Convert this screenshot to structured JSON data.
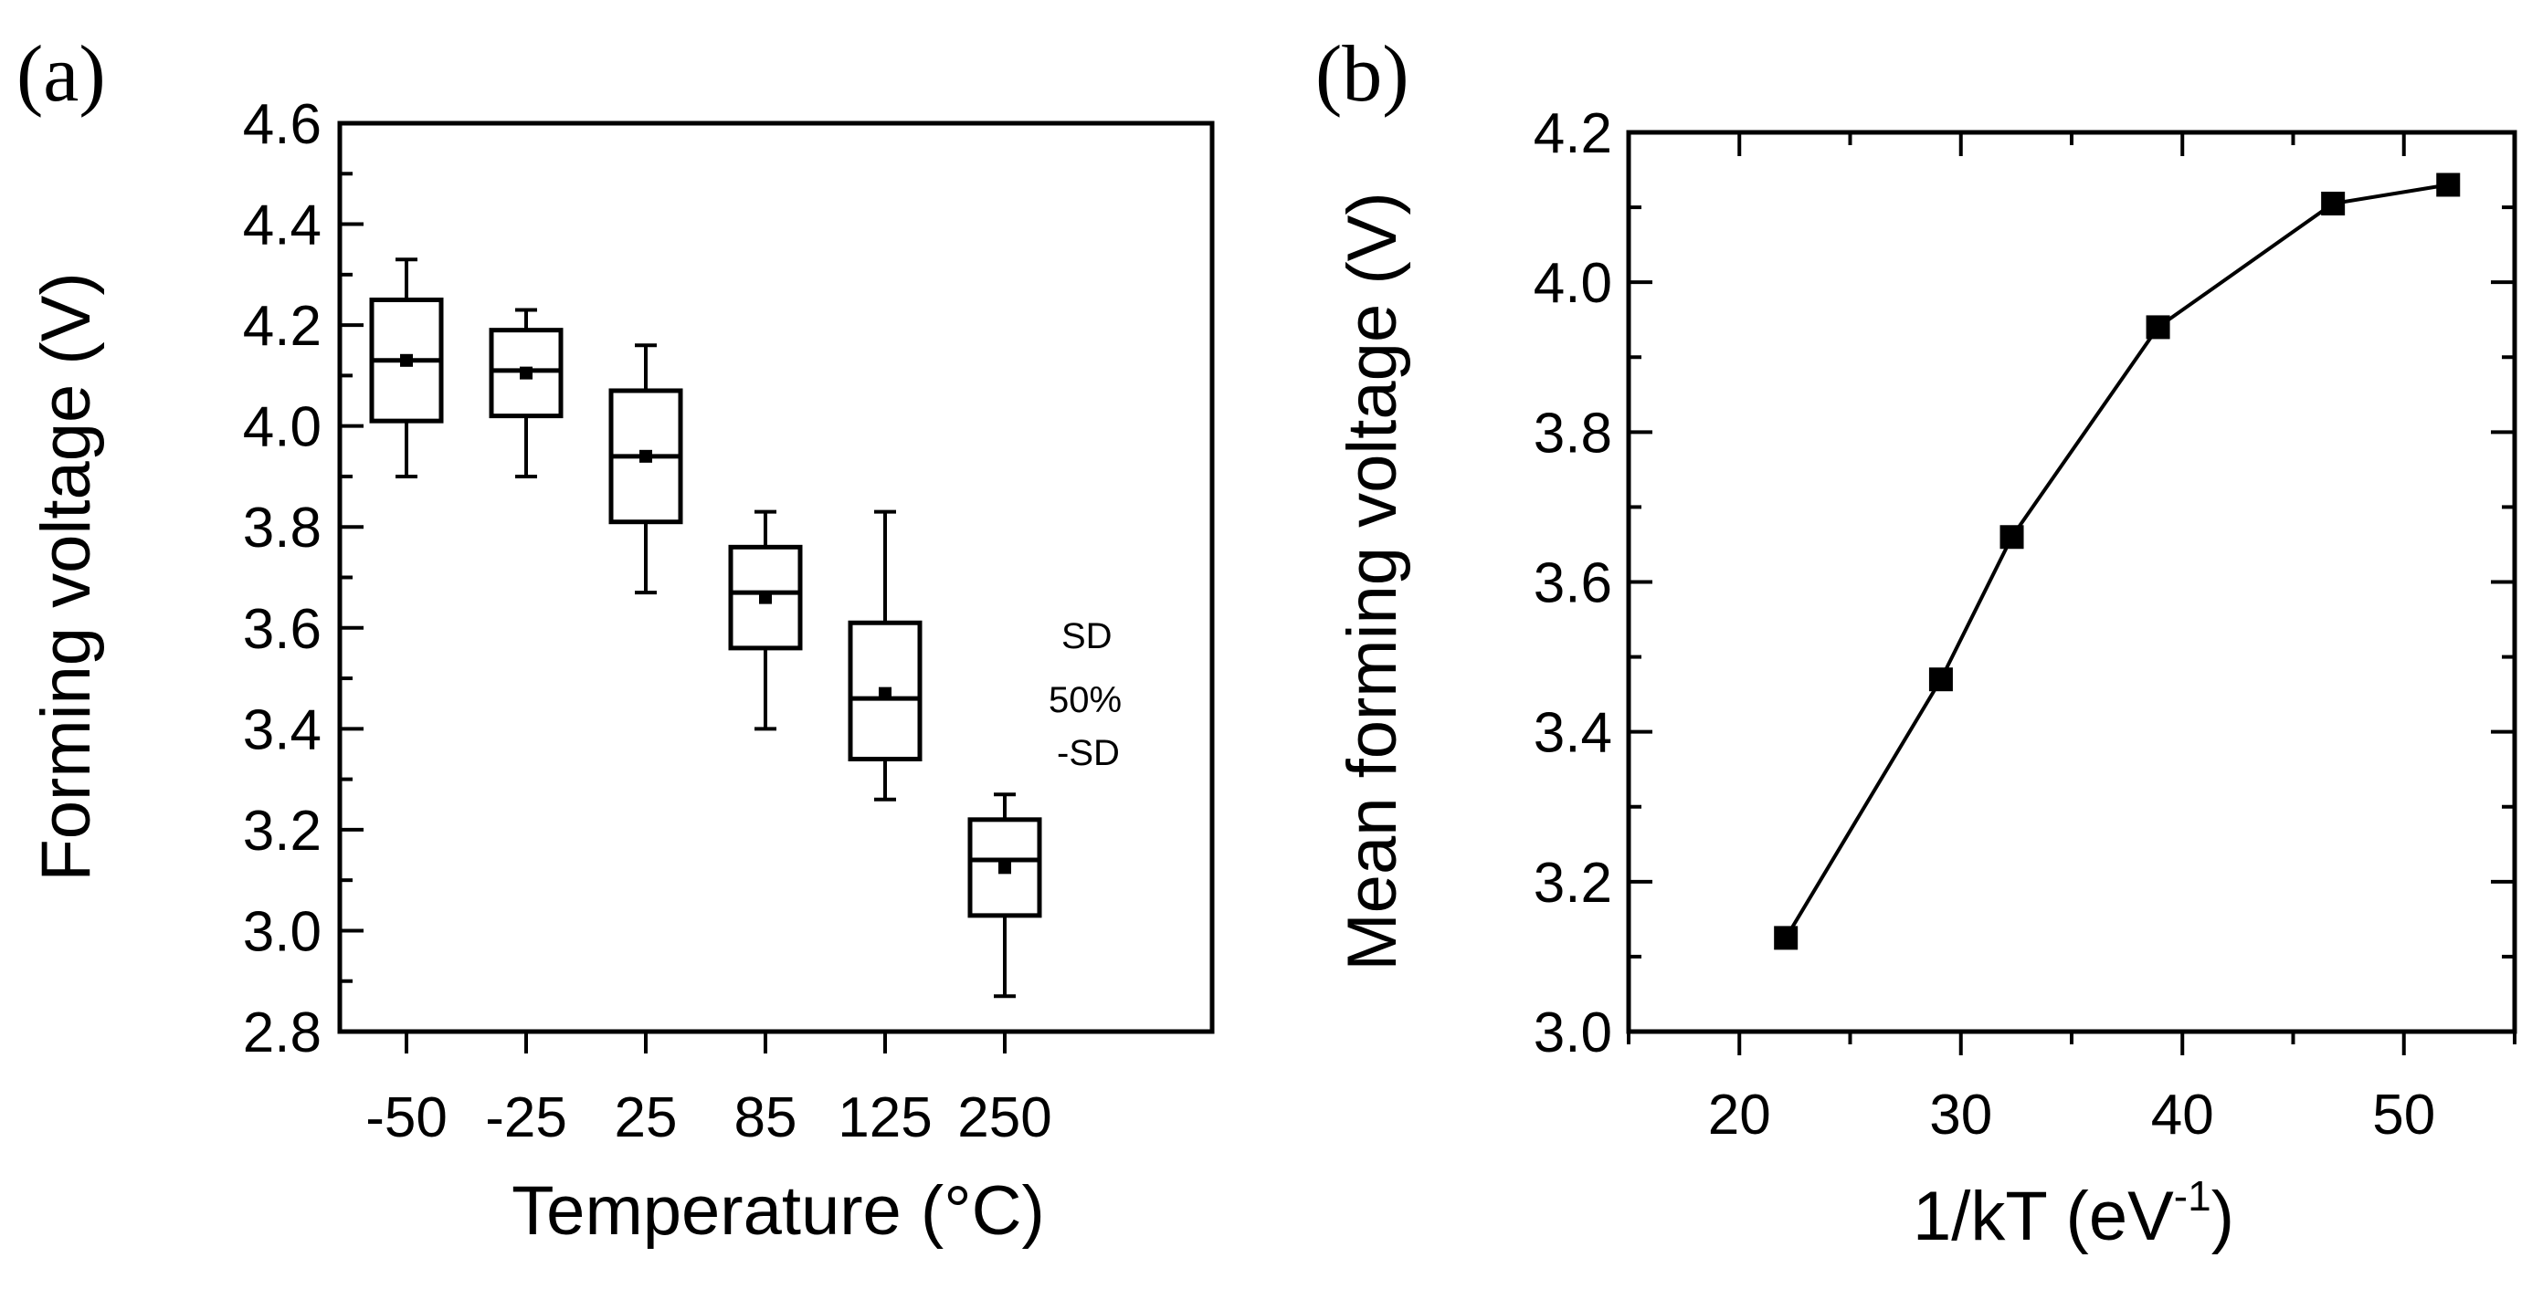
{
  "chart_data": [
    {
      "type": "box",
      "panel_label": "(a)",
      "xlabel": "Temperature (°C)",
      "ylabel": "Forming voltage (V)",
      "categories": [
        "-50",
        "-25",
        "25",
        "85",
        "125",
        "250"
      ],
      "ylim": [
        2.8,
        4.6
      ],
      "yticks": [
        "2.8",
        "3.0",
        "3.2",
        "3.4",
        "3.6",
        "3.8",
        "4.0",
        "4.2",
        "4.4",
        "4.6"
      ],
      "boxes": [
        {
          "category": "-50",
          "whisker_low": 3.9,
          "q1": 4.01,
          "median": 4.13,
          "q3": 4.25,
          "whisker_high": 4.33,
          "mean": 4.13
        },
        {
          "category": "-25",
          "whisker_low": 3.9,
          "q1": 4.02,
          "median": 4.11,
          "q3": 4.19,
          "whisker_high": 4.23,
          "mean": 4.105
        },
        {
          "category": "25",
          "whisker_low": 3.67,
          "q1": 3.81,
          "median": 3.94,
          "q3": 4.07,
          "whisker_high": 4.16,
          "mean": 3.94
        },
        {
          "category": "85",
          "whisker_low": 3.4,
          "q1": 3.56,
          "median": 3.67,
          "q3": 3.76,
          "whisker_high": 3.83,
          "mean": 3.66
        },
        {
          "category": "125",
          "whisker_low": 3.26,
          "q1": 3.34,
          "median": 3.46,
          "q3": 3.61,
          "whisker_high": 3.83,
          "mean": 3.47
        },
        {
          "category": "250",
          "whisker_low": 2.87,
          "q1": 3.03,
          "median": 3.14,
          "q3": 3.22,
          "whisker_high": 3.27,
          "mean": 3.125
        }
      ],
      "annotations": [
        "SD",
        "50%",
        "-SD"
      ]
    },
    {
      "type": "line",
      "panel_label": "(b)",
      "xlabel_main": "1/kT (eV",
      "xlabel_sup": "-1",
      "xlabel_end": ")",
      "ylabel": "Mean forming voltage (V)",
      "xlim": [
        15,
        55
      ],
      "ylim": [
        3.0,
        4.2
      ],
      "xticks": [
        "20",
        "30",
        "40",
        "50"
      ],
      "yticks": [
        "3.0",
        "3.2",
        "3.4",
        "3.6",
        "3.8",
        "4.0",
        "4.2"
      ],
      "x": [
        22.1,
        29.1,
        32.3,
        38.9,
        46.8,
        52.0
      ],
      "y": [
        3.125,
        3.47,
        3.66,
        3.94,
        4.105,
        4.13
      ]
    }
  ]
}
